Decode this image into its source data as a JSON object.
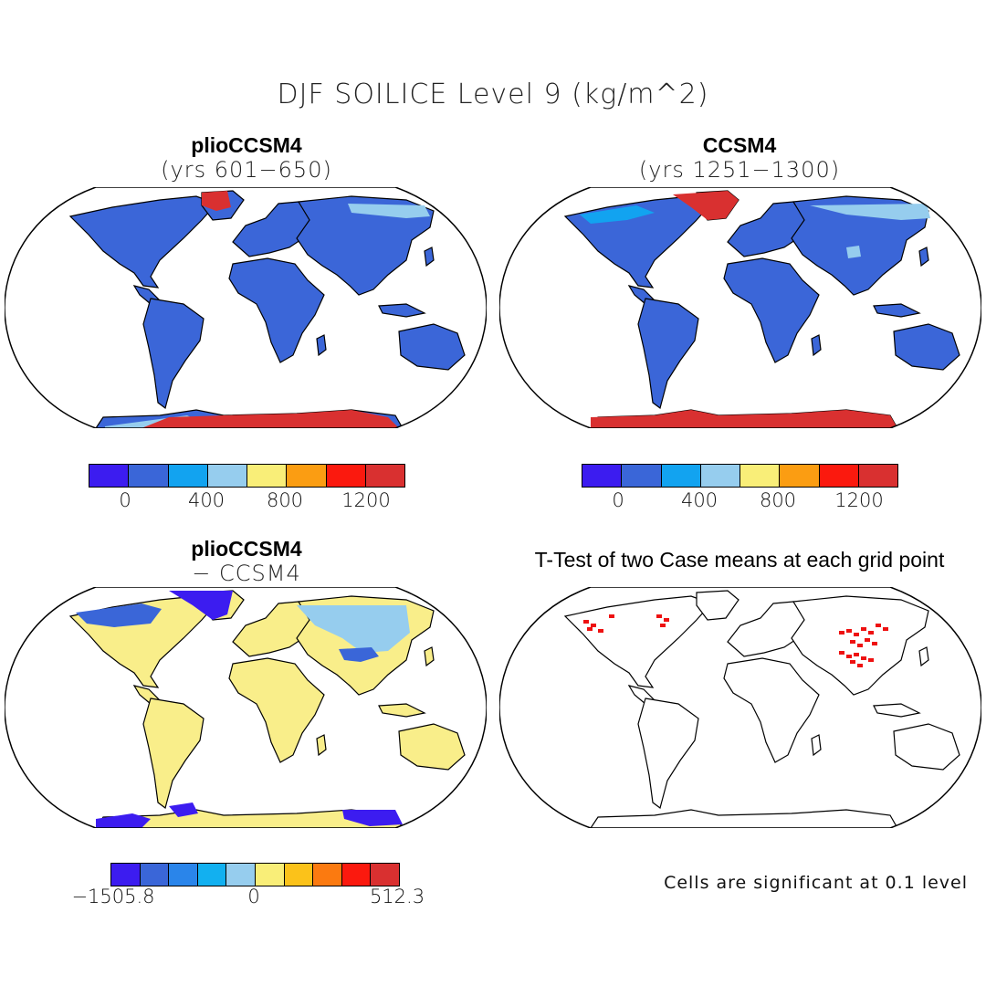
{
  "figure": {
    "title": "DJF SOILICE Level 9 (kg/m^2)"
  },
  "panels": {
    "top_left": {
      "title": "plioCCSM4",
      "subtitle": "(yrs 601−650)",
      "land_color": "#3b66d8",
      "ice_color": "#d93030",
      "colorbar": {
        "colors": [
          "#3c1cf0",
          "#3a66d8",
          "#12a3f0",
          "#96cdee",
          "#f9ee78",
          "#fb9d12",
          "#fb190e",
          "#d93030"
        ],
        "tick_labels": [
          "0",
          "400",
          "800",
          "1200"
        ]
      }
    },
    "top_right": {
      "title": "CCSM4",
      "subtitle": "(yrs 1251−1300)",
      "land_color": "#3b66d8",
      "ice_color": "#d93030",
      "colorbar": {
        "colors": [
          "#3c1cf0",
          "#3a66d8",
          "#12a3f0",
          "#96cdee",
          "#f9ee78",
          "#fb9d12",
          "#fb190e",
          "#d93030"
        ],
        "tick_labels": [
          "0",
          "400",
          "800",
          "1200"
        ]
      }
    },
    "bottom_left": {
      "title": "plioCCSM4",
      "subtitle": "− CCSM4",
      "land_color": "#f9ee8a",
      "ice_color": "#3c1cf0",
      "colorbar": {
        "colors": [
          "#3c1cf0",
          "#3a66d8",
          "#2a85ea",
          "#12b0f0",
          "#96cdee",
          "#f9ee78",
          "#fbc21a",
          "#fb7a10",
          "#fb190e",
          "#d93030"
        ],
        "min_label": "−1505.8",
        "mid_label": "0",
        "max_label": "512.3"
      }
    },
    "bottom_right": {
      "title": "T-Test of two Case means at each grid point",
      "note": "Cells are significant at 0.1 level",
      "signif_color": "#ee1111"
    }
  }
}
